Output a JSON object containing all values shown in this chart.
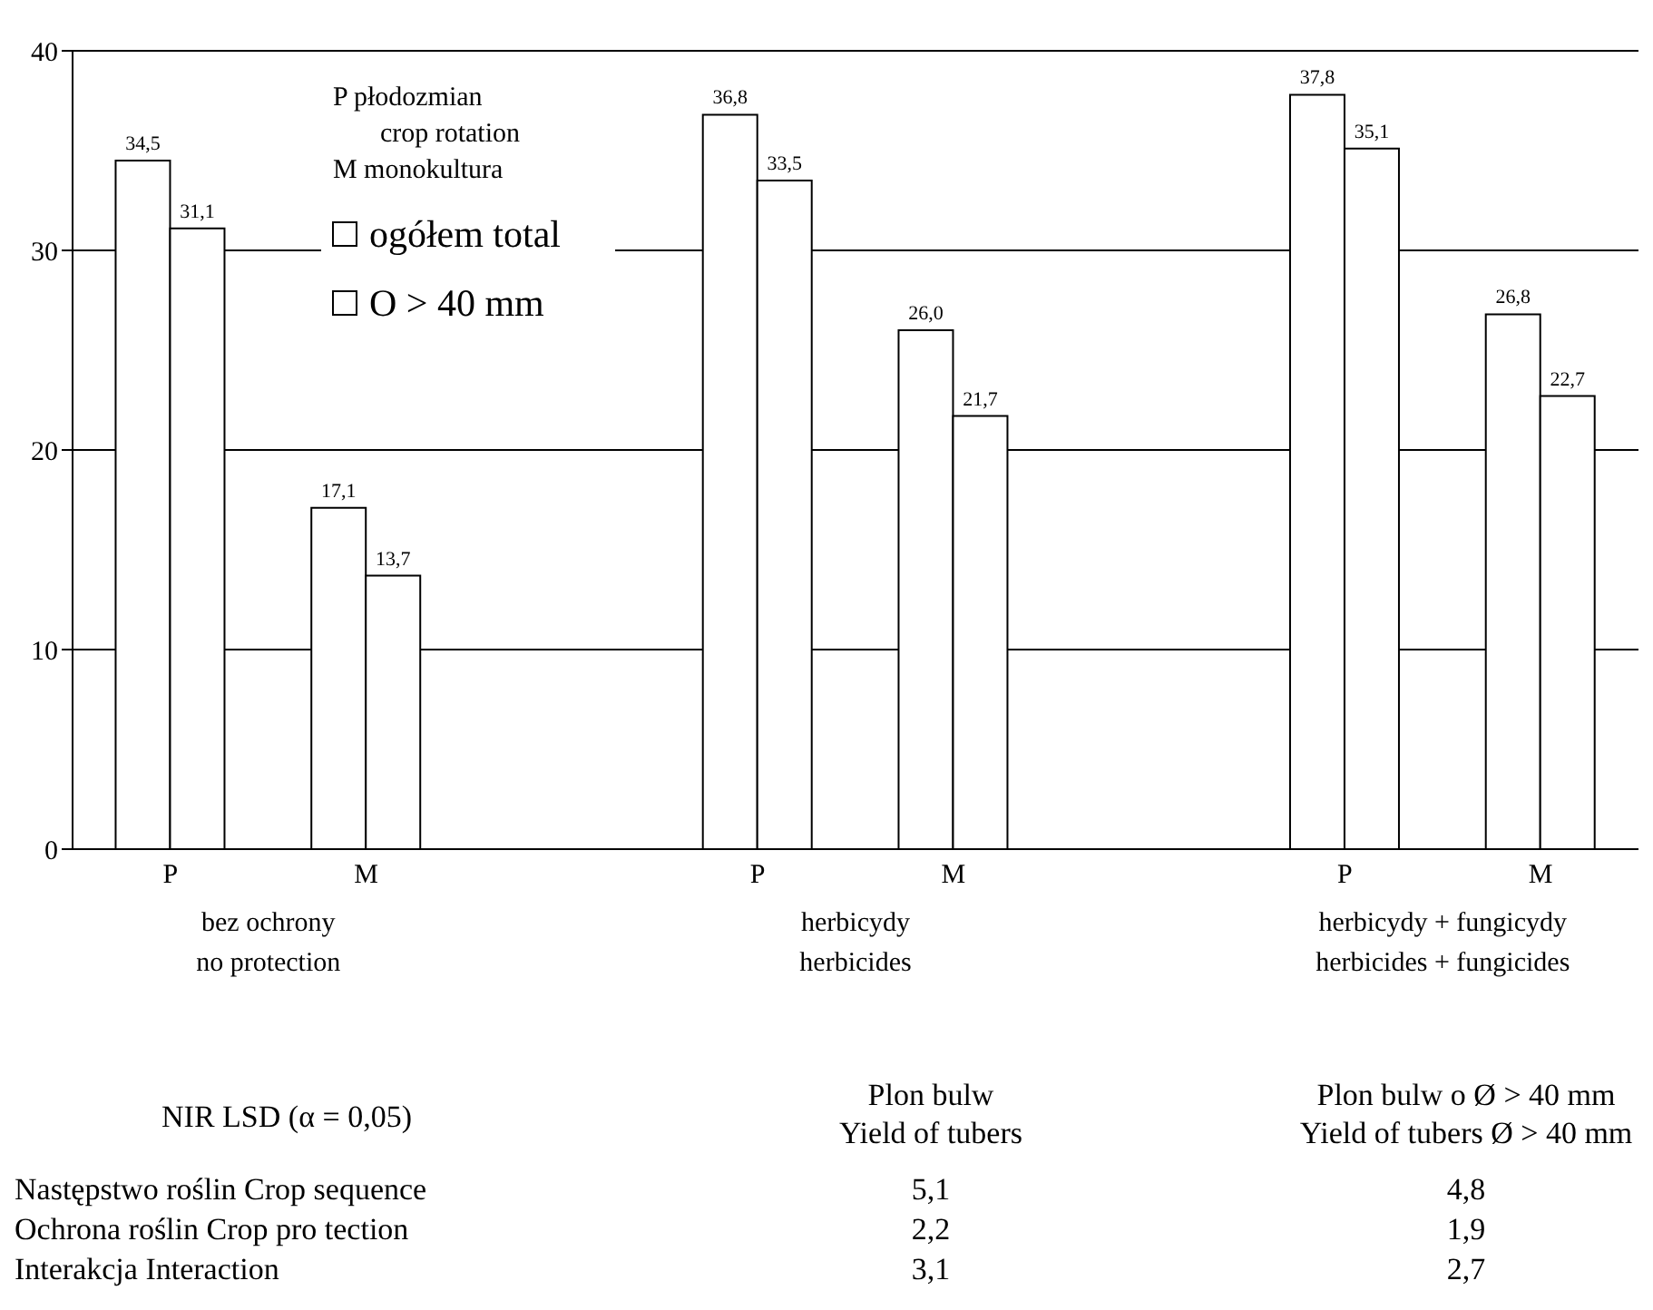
{
  "chart_data": {
    "type": "bar",
    "categories": [
      "P",
      "M",
      null,
      "P",
      "M",
      null,
      "P",
      "M"
    ],
    "series": [
      {
        "name": "ogółem total",
        "color": "#ffffff",
        "values": [
          34.5,
          17.1,
          null,
          36.8,
          26.0,
          null,
          37.8,
          26.8
        ],
        "value_labels": [
          "34,5",
          "17,1",
          null,
          "36,8",
          "26,0",
          null,
          "37,8",
          "26,8"
        ]
      },
      {
        "name": "O > 40 mm",
        "color": "#ffffff",
        "values": [
          31.1,
          13.7,
          null,
          33.5,
          21.7,
          null,
          35.1,
          22.7
        ],
        "value_labels": [
          "31,1",
          "13,7",
          null,
          "33,5",
          "21,7",
          null,
          "35,1",
          "22,7"
        ]
      }
    ],
    "ylim": [
      0,
      40
    ],
    "yticks": [
      0,
      10,
      20,
      30,
      40
    ],
    "grid": "y",
    "legend": "top left",
    "legend_title": "P płodozmian\ncrop rotation\nM monokultura",
    "annotations": [
      "bez ochrony\nno protection",
      "herbicydy\nherbicides",
      "herbicydy + fungicydy\nherbicides + fungicides",
      "NIR LSD (α = 0,05)",
      "Plon bulw\nYield of tubers",
      "Plon bulw o  Ø > 40 mm\nYield of tubers Ø > 40 mm",
      "Następstwo roślin Crop sequence",
      "5,1",
      "4,8",
      "Ochrona roślin Crop pro tection",
      "2,2",
      "1,9",
      "Interakcja Interaction",
      "3,1",
      "2,7"
    ]
  }
}
